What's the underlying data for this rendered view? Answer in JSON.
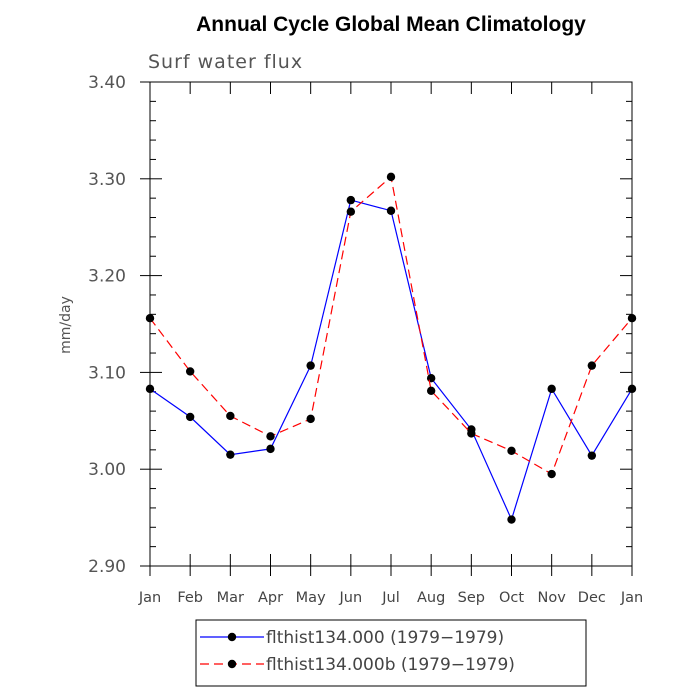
{
  "chart_data": {
    "type": "line",
    "title": "Annual Cycle Global Mean Climatology",
    "subtitle": "Surf water flux",
    "xlabel": "",
    "ylabel": "mm/day",
    "ylim": [
      2.9,
      3.4
    ],
    "yticks": [
      "2.90",
      "3.00",
      "3.10",
      "3.20",
      "3.30",
      "3.40"
    ],
    "categories": [
      "Jan",
      "Feb",
      "Mar",
      "Apr",
      "May",
      "Jun",
      "Jul",
      "Aug",
      "Sep",
      "Oct",
      "Nov",
      "Dec",
      "Jan"
    ],
    "grid": false,
    "legend_position": "bottom",
    "series": [
      {
        "name": "flthist134.000 (1979−1979)",
        "color": "#0000ff",
        "style": "solid",
        "values": [
          3.083,
          3.054,
          3.015,
          3.021,
          3.107,
          3.278,
          3.267,
          3.094,
          3.041,
          2.948,
          3.083,
          3.014,
          3.083
        ]
      },
      {
        "name": "flthist134.000b (1979−1979)",
        "color": "#ff0000",
        "style": "dashed",
        "values": [
          3.156,
          3.101,
          3.055,
          3.034,
          3.052,
          3.266,
          3.302,
          3.081,
          3.037,
          3.019,
          2.995,
          3.107,
          3.156
        ]
      }
    ]
  }
}
